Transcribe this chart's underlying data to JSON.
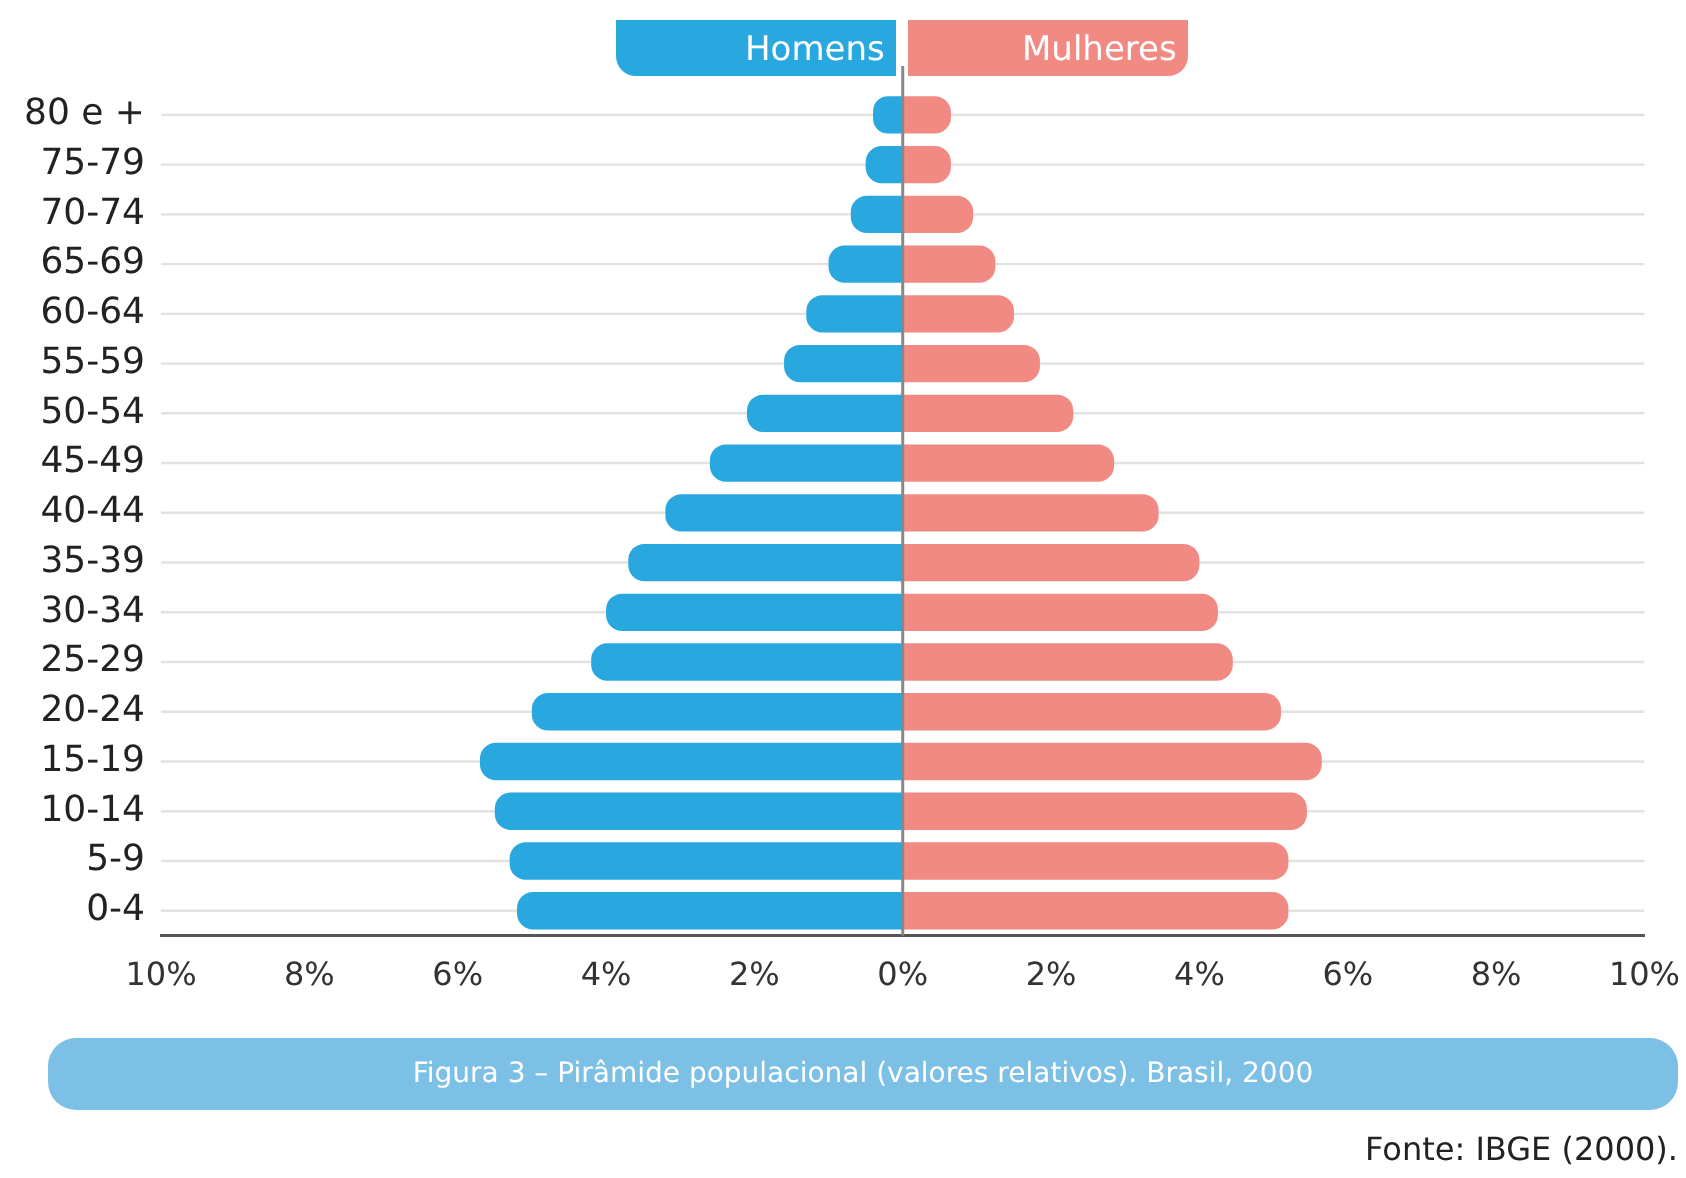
{
  "chart_data": {
    "type": "bar",
    "orientation": "horizontal",
    "stacked": true,
    "title": "Figura 3 – Pirâmide populacional (valores relativos). Brasil, 2000",
    "annotations": [
      "Fonte: IBGE (2000)."
    ],
    "categories": [
      "80 e +",
      "75-79",
      "70-74",
      "65-69",
      "60-64",
      "55-59",
      "50-54",
      "45-49",
      "40-44",
      "35-39",
      "30-34",
      "25-29",
      "20-24",
      "15-19",
      "10-14",
      "5-9",
      "0-4"
    ],
    "series": [
      {
        "name": "Homens",
        "color": "#29a8e0",
        "values": [
          -0.4,
          -0.5,
          -0.7,
          -1.0,
          -1.3,
          -1.6,
          -2.1,
          -2.6,
          -3.2,
          -3.7,
          -4.0,
          -4.2,
          -5.0,
          -5.7,
          -5.5,
          -5.3,
          -5.2
        ]
      },
      {
        "name": "Mulheres",
        "color": "#f28a84",
        "values": [
          0.65,
          0.65,
          0.95,
          1.25,
          1.5,
          1.85,
          2.3,
          2.85,
          3.45,
          4.0,
          4.25,
          4.45,
          5.1,
          5.65,
          5.45,
          5.2,
          5.2
        ]
      }
    ],
    "xlim": [
      -10,
      10
    ],
    "xticks": [
      {
        "value": -10,
        "label": "10%"
      },
      {
        "value": -8,
        "label": "8%"
      },
      {
        "value": -6,
        "label": "6%"
      },
      {
        "value": -4,
        "label": "4%"
      },
      {
        "value": -2,
        "label": "2%"
      },
      {
        "value": 0,
        "label": "0%"
      },
      {
        "value": 2,
        "label": "2%"
      },
      {
        "value": 4,
        "label": "4%"
      },
      {
        "value": 6,
        "label": "6%"
      },
      {
        "value": 8,
        "label": "8%"
      },
      {
        "value": 10,
        "label": "10%"
      }
    ],
    "ref_lines": [
      {
        "axis": "x",
        "value": 0,
        "color": "#888888"
      }
    ],
    "grid": "y",
    "legend": "top"
  }
}
